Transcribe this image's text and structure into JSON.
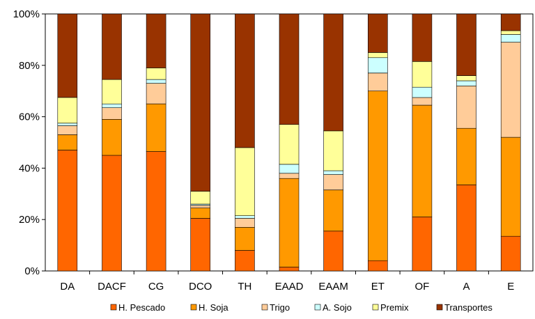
{
  "chart_data": {
    "type": "bar",
    "stacked": true,
    "normalized_percent": true,
    "categories": [
      "DA",
      "DACF",
      "CG",
      "DCO",
      "TH",
      "EAAD",
      "EAAM",
      "ET",
      "OF",
      "A",
      "E"
    ],
    "series": [
      {
        "name": "H. Pescado",
        "color": "#FF6600",
        "values": [
          47.0,
          45.0,
          46.5,
          20.5,
          8.0,
          1.5,
          15.5,
          4.0,
          21.0,
          33.5,
          13.5
        ]
      },
      {
        "name": "H. Soja",
        "color": "#FF9900",
        "values": [
          6.0,
          14.0,
          18.5,
          4.0,
          9.0,
          34.5,
          16.0,
          66.0,
          43.5,
          22.0,
          38.5
        ]
      },
      {
        "name": "Trigo",
        "color": "#FFCC99",
        "values": [
          3.5,
          4.5,
          8.0,
          1.0,
          3.5,
          2.0,
          6.0,
          7.0,
          3.0,
          16.5,
          37.0
        ]
      },
      {
        "name": "A. Sojo",
        "color": "#CCFFFF",
        "values": [
          1.0,
          1.5,
          1.5,
          0.5,
          1.0,
          3.5,
          1.5,
          6.0,
          4.0,
          2.0,
          3.0
        ]
      },
      {
        "name": "Premix",
        "color": "#FFFF99",
        "values": [
          10.0,
          9.5,
          4.5,
          5.0,
          26.5,
          15.5,
          15.5,
          2.0,
          10.0,
          2.0,
          1.5
        ]
      },
      {
        "name": "Transportes",
        "color": "#993300",
        "values": [
          32.5,
          25.5,
          21.0,
          69.0,
          52.0,
          43.0,
          45.5,
          15.0,
          18.5,
          24.0,
          6.5
        ]
      }
    ],
    "y_ticks": [
      "0%",
      "20%",
      "40%",
      "60%",
      "80%",
      "100%"
    ],
    "ylim": [
      0,
      100
    ],
    "title": "",
    "xlabel": "",
    "ylabel": "",
    "grid": false,
    "legend_position": "bottom"
  }
}
